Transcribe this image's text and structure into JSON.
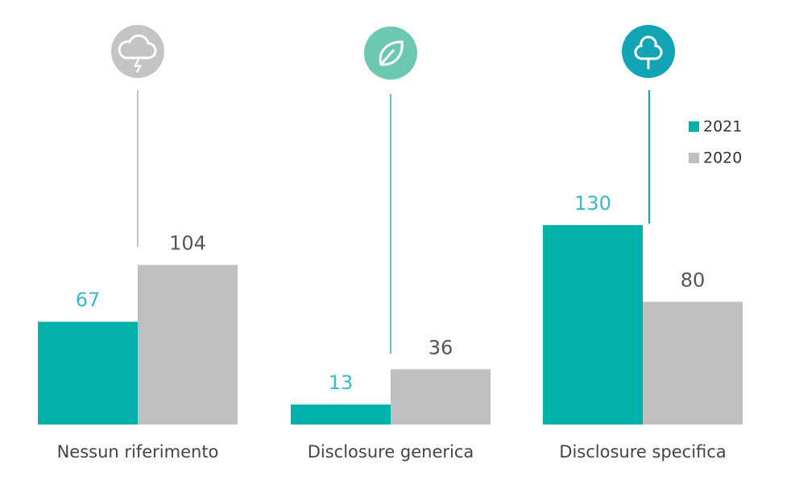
{
  "chart_data": {
    "type": "bar",
    "categories": [
      "Nessun riferimento",
      "Disclosure generica",
      "Disclosure specifica"
    ],
    "series": [
      {
        "name": "2021",
        "color": "#00b2a9",
        "label_color": "#3ab9c6",
        "values": [
          67,
          13,
          130
        ]
      },
      {
        "name": "2020",
        "color": "#bfbfbf",
        "label_color": "#555555",
        "values": [
          104,
          36,
          80
        ]
      }
    ],
    "legend": "upper right"
  }
}
